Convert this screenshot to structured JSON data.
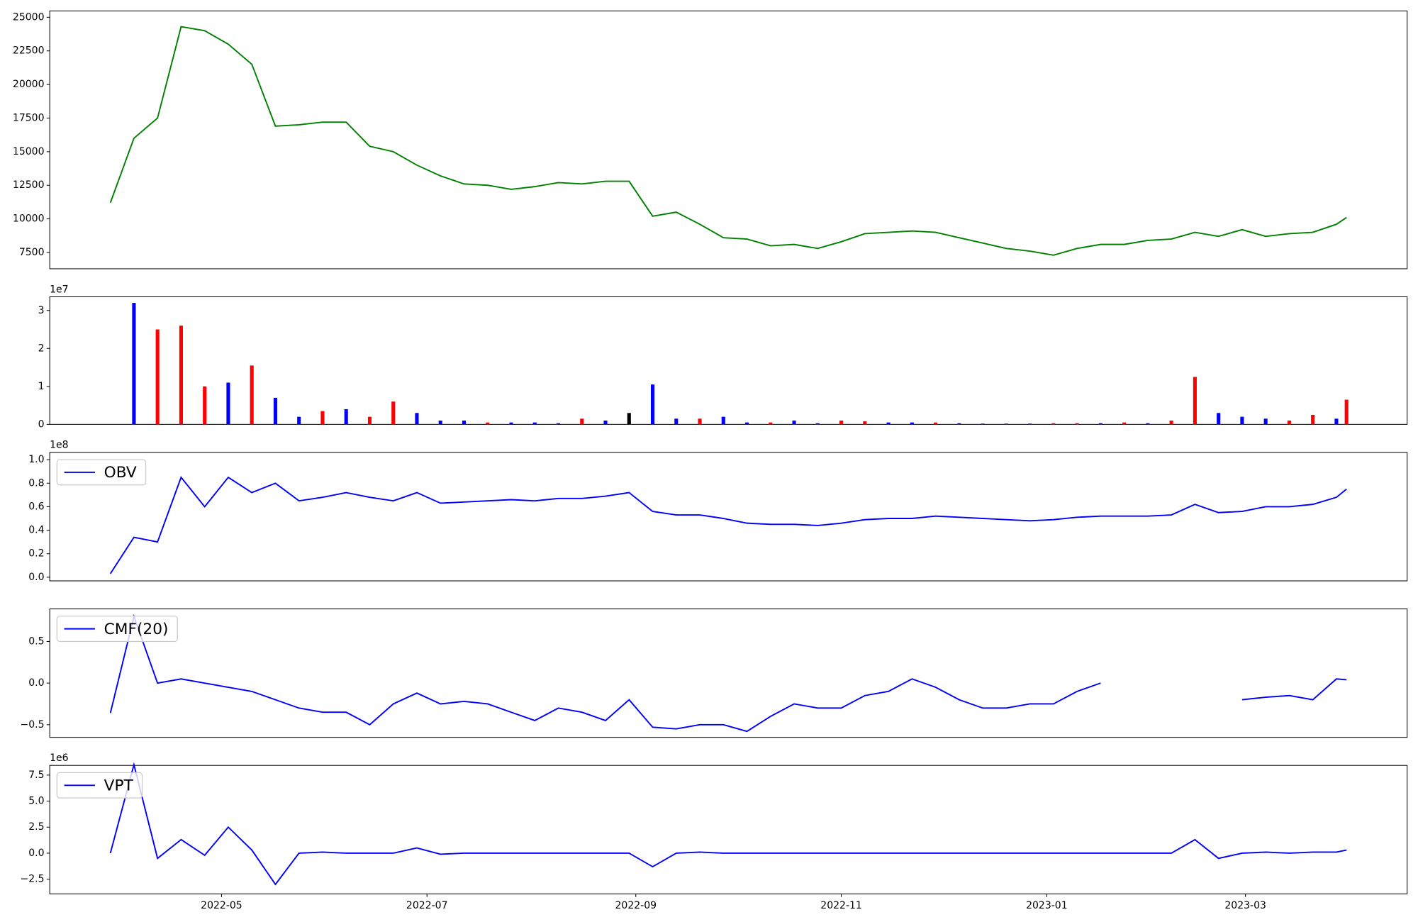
{
  "chart_data": [
    {
      "type": "line",
      "color": "#008000",
      "x": [
        -3,
        4,
        11,
        18,
        25,
        32,
        39,
        46,
        53,
        60,
        67,
        74,
        81,
        88,
        95,
        102,
        109,
        116,
        123,
        130,
        137,
        144,
        151,
        158,
        165,
        172,
        179,
        186,
        193,
        200,
        207,
        214,
        221,
        228,
        235,
        242,
        249,
        256,
        263,
        270,
        277,
        284,
        291,
        298,
        305,
        312,
        319,
        326,
        333,
        340,
        347,
        354,
        361,
        364
      ],
      "values": [
        11200,
        16000,
        17500,
        24300,
        24000,
        23000,
        21500,
        16900,
        17000,
        17200,
        17200,
        15400,
        15000,
        14000,
        13200,
        12600,
        12500,
        12200,
        12400,
        12700,
        12600,
        12800,
        12800,
        10200,
        10500,
        9600,
        8600,
        8500,
        8000,
        8100,
        7800,
        8300,
        8900,
        9000,
        9100,
        9000,
        8600,
        8200,
        7800,
        7600,
        7300,
        7800,
        8100,
        8100,
        8400,
        8500,
        9000,
        8700,
        9200,
        8700,
        8900,
        9000,
        9600,
        10100
      ],
      "xlim": [
        -21,
        382
      ],
      "ylim": [
        6289,
        25470
      ],
      "yticks": [
        7500,
        10000,
        12500,
        15000,
        17500,
        20000,
        22500,
        25000
      ]
    },
    {
      "type": "bar",
      "y_offset_text": "1e7",
      "x": [
        -3,
        4,
        11,
        18,
        25,
        32,
        39,
        46,
        53,
        60,
        67,
        74,
        81,
        88,
        95,
        102,
        109,
        116,
        123,
        130,
        137,
        144,
        151,
        158,
        165,
        172,
        179,
        186,
        193,
        200,
        207,
        214,
        221,
        228,
        235,
        242,
        249,
        256,
        263,
        270,
        277,
        284,
        291,
        298,
        305,
        312,
        319,
        326,
        333,
        340,
        347,
        354,
        361,
        364
      ],
      "values": [
        0,
        3.2,
        2.5,
        2.6,
        1.0,
        1.1,
        1.55,
        0.7,
        0.2,
        0.35,
        0.4,
        0.2,
        0.6,
        0.3,
        0.1,
        0.1,
        0.05,
        0.05,
        0.05,
        0.03,
        0.15,
        0.1,
        0.3,
        1.05,
        0.15,
        0.15,
        0.2,
        0.05,
        0.05,
        0.1,
        0.03,
        0.1,
        0.08,
        0.05,
        0.05,
        0.05,
        0.03,
        0.02,
        0.02,
        0.02,
        0.03,
        0.03,
        0.03,
        0.05,
        0.03,
        0.1,
        1.25,
        0.3,
        0.2,
        0.15,
        0.1,
        0.25,
        0.15,
        0.65
      ],
      "colors": [
        "#ff0000",
        "#0000ff",
        "#ff0000",
        "#ff0000",
        "#ff0000",
        "#0000ff",
        "#ff0000",
        "#0000ff",
        "#0000ff",
        "#ff0000",
        "#0000ff",
        "#ff0000",
        "#ff0000",
        "#0000ff",
        "#0000ff",
        "#0000ff",
        "#ff0000",
        "#0000ff",
        "#0000ff",
        "#0000ff",
        "#ff0000",
        "#0000ff",
        "#000000",
        "#0000ff",
        "#0000ff",
        "#ff0000",
        "#0000ff",
        "#0000ff",
        "#ff0000",
        "#0000ff",
        "#0000ff",
        "#ff0000",
        "#ff0000",
        "#0000ff",
        "#0000ff",
        "#ff0000",
        "#0000ff",
        "#0000ff",
        "#0000ff",
        "#0000ff",
        "#ff0000",
        "#ff0000",
        "#0000ff",
        "#ff0000",
        "#0000ff",
        "#ff0000",
        "#ff0000",
        "#0000ff",
        "#0000ff",
        "#0000ff",
        "#ff0000",
        "#ff0000",
        "#0000ff",
        "#ff0000"
      ],
      "xlim": [
        -21,
        382
      ],
      "ylim": [
        0,
        3.36
      ],
      "yticks": [
        0,
        1,
        2,
        3
      ]
    },
    {
      "type": "line",
      "y_offset_text": "1e8",
      "legend": "upper left",
      "x": [
        -3,
        4,
        11,
        18,
        25,
        32,
        39,
        46,
        53,
        60,
        67,
        74,
        81,
        88,
        95,
        102,
        109,
        116,
        123,
        130,
        137,
        144,
        151,
        158,
        165,
        172,
        179,
        186,
        193,
        200,
        207,
        214,
        221,
        228,
        235,
        242,
        249,
        256,
        263,
        270,
        277,
        284,
        291,
        298,
        305,
        312,
        319,
        326,
        333,
        340,
        347,
        354,
        361,
        364
      ],
      "series": [
        {
          "name": "OBV",
          "color": "#0000ff",
          "values": [
            0.03,
            0.34,
            0.3,
            0.85,
            0.6,
            0.85,
            0.72,
            0.8,
            0.65,
            0.68,
            0.72,
            0.68,
            0.65,
            0.72,
            0.63,
            0.64,
            0.65,
            0.66,
            0.65,
            0.67,
            0.67,
            0.69,
            0.72,
            0.56,
            0.53,
            0.53,
            0.5,
            0.46,
            0.45,
            0.45,
            0.44,
            0.46,
            0.49,
            0.5,
            0.5,
            0.52,
            0.51,
            0.5,
            0.49,
            0.48,
            0.49,
            0.51,
            0.52,
            0.52,
            0.52,
            0.53,
            0.62,
            0.55,
            0.56,
            0.6,
            0.6,
            0.62,
            0.68,
            0.75
          ]
        }
      ],
      "xlim": [
        -21,
        382
      ],
      "ylim": [
        -0.031,
        1.062
      ],
      "yticks": [
        {
          "value": 0,
          "label": "0.0"
        },
        0.2,
        0.4,
        0.6,
        0.8,
        {
          "value": 1,
          "label": "1.0"
        }
      ]
    },
    {
      "type": "line",
      "legend": "upper left",
      "x": [
        -3,
        4,
        11,
        18,
        25,
        32,
        39,
        46,
        53,
        60,
        67,
        74,
        81,
        88,
        95,
        102,
        109,
        116,
        123,
        130,
        137,
        144,
        151,
        158,
        165,
        172,
        179,
        186,
        193,
        200,
        207,
        214,
        221,
        228,
        235,
        242,
        249,
        256,
        263,
        270,
        277,
        284,
        291,
        298,
        305,
        312,
        319,
        326,
        333,
        340,
        347,
        354,
        361,
        364
      ],
      "series": [
        {
          "name": "CMF(20)",
          "color": "#0000ff",
          "values": [
            -0.36,
            0.8,
            0.0,
            0.05,
            0.0,
            -0.05,
            -0.1,
            -0.2,
            -0.3,
            -0.35,
            -0.35,
            -0.5,
            -0.25,
            -0.12,
            -0.25,
            -0.22,
            -0.25,
            -0.35,
            -0.45,
            -0.3,
            -0.35,
            -0.45,
            -0.2,
            -0.53,
            -0.55,
            -0.5,
            -0.5,
            -0.58,
            -0.4,
            -0.25,
            -0.3,
            -0.3,
            -0.15,
            -0.1,
            0.05,
            -0.05,
            -0.2,
            -0.3,
            -0.3,
            -0.25,
            -0.25,
            -0.1,
            0.0,
            null,
            null,
            null,
            null,
            null,
            -0.2,
            -0.17,
            -0.15,
            -0.2,
            0.05,
            0.04
          ]
        }
      ],
      "xlim": [
        -21,
        382
      ],
      "ylim": [
        -0.652,
        0.891
      ],
      "yticks": [
        {
          "value": -0.5,
          "label": "−0.5"
        },
        {
          "value": 0,
          "label": "0.0"
        },
        0.5
      ]
    },
    {
      "type": "line",
      "y_offset_text": "1e6",
      "legend": "upper left",
      "x": [
        -3,
        4,
        11,
        18,
        25,
        32,
        39,
        46,
        53,
        60,
        67,
        74,
        81,
        88,
        95,
        102,
        109,
        116,
        123,
        130,
        137,
        144,
        151,
        158,
        165,
        172,
        179,
        186,
        193,
        200,
        207,
        214,
        221,
        228,
        235,
        242,
        249,
        256,
        263,
        270,
        277,
        284,
        291,
        298,
        305,
        312,
        319,
        326,
        333,
        340,
        347,
        354,
        361,
        364
      ],
      "series": [
        {
          "name": "VPT",
          "color": "#0000ff",
          "values": [
            0,
            8.5,
            -0.5,
            1.3,
            -0.2,
            2.5,
            0.3,
            -3.0,
            0,
            0.1,
            0,
            0,
            0,
            0.5,
            -0.1,
            0,
            0,
            0,
            0,
            0,
            0,
            0,
            0,
            -1.3,
            0,
            0.1,
            0,
            0,
            0,
            0,
            0,
            0,
            0,
            0,
            0,
            0,
            0,
            0,
            0,
            0,
            0,
            0,
            0,
            0,
            0,
            0,
            1.3,
            -0.5,
            0,
            0.1,
            0,
            0.1,
            0.1,
            0.3
          ]
        }
      ],
      "xlim": [
        -21,
        382
      ],
      "ylim": [
        -3.91,
        8.43
      ],
      "yticks": [
        {
          "value": -2.5,
          "label": "−2.5"
        },
        {
          "value": 0,
          "label": "0.0"
        },
        2.5,
        {
          "value": 5,
          "label": "5.0"
        },
        7.5
      ],
      "xticks": [
        {
          "value": 30,
          "label": "2022-05"
        },
        {
          "value": 91,
          "label": "2022-07"
        },
        {
          "value": 153,
          "label": "2022-09"
        },
        {
          "value": 214,
          "label": "2022-11"
        },
        {
          "value": 275,
          "label": "2023-01"
        },
        {
          "value": 334,
          "label": "2023-03"
        }
      ]
    }
  ]
}
